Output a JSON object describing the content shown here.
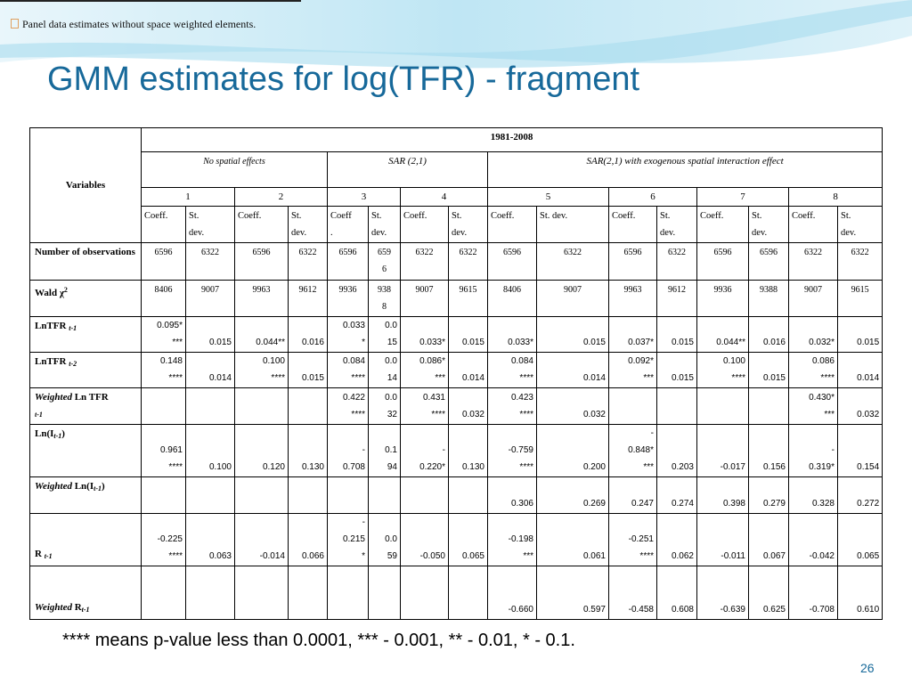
{
  "slide": {
    "note": "Panel data estimates without space weighted elements.",
    "title": "GMM estimates for log(TFR) - fragment",
    "footnote": "**** means p-value less than 0.0001, *** - 0.001, ** - 0.01, * - 0.1.",
    "page_number": "26"
  },
  "table": {
    "variables_header": "Variables",
    "period": "1981-2008",
    "groups": [
      "No spatial effects",
      "SAR (2,1)",
      "SAR(2,1) with exogenous spatial interaction effect"
    ],
    "models": [
      "1",
      "2",
      "3",
      "4",
      "5",
      "6",
      "7",
      "8"
    ],
    "column_labels": [
      "Coeff.",
      "St.\ndev.",
      "Coeff.",
      "St.\ndev.",
      "Coeff\n.",
      "St.\ndev.",
      "Coeff.",
      "St.\ndev.",
      "Coeff.",
      "St. dev.",
      "Coeff.",
      "St.\ndev.",
      "Coeff.",
      "St.\ndev.",
      "Coeff.",
      "St.\ndev."
    ],
    "rows": [
      {
        "label": [
          {
            "text": "Number of observations",
            "style": "bold"
          }
        ],
        "cells": [
          "6596",
          "6322",
          "6596",
          "6322",
          "6596",
          "659\n6",
          "6322",
          "6322",
          "6596",
          "6322",
          "6596",
          "6322",
          "6596",
          "6596",
          "6322",
          "6322"
        ]
      },
      {
        "label": [
          {
            "text": "Wald χ",
            "style": "bold"
          },
          {
            "text": "2",
            "style": "sup"
          }
        ],
        "cells": [
          "8406",
          "9007",
          "9963",
          "9612",
          "9936",
          "938\n8",
          "9007",
          "9615",
          "8406",
          "9007",
          "9963",
          "9612",
          "9936",
          "9388",
          "9007",
          "9615"
        ]
      },
      {
        "label": [
          {
            "text": "LnTFR ",
            "style": "bold"
          },
          {
            "text": "t-1",
            "style": "sub"
          }
        ],
        "cells": [
          "0.095*\n***",
          "0.015",
          "0.044**",
          "0.016",
          "0.033\n*",
          "0.0\n15",
          "0.033*",
          "0.015",
          "0.033*",
          "0.015",
          "0.037*",
          "0.015",
          "0.044**",
          "0.016",
          "0.032*",
          "0.015"
        ]
      },
      {
        "label": [
          {
            "text": "LnTFR ",
            "style": "bold"
          },
          {
            "text": "t-2",
            "style": "sub"
          }
        ],
        "cells": [
          "0.148\n****",
          "0.014",
          "0.100\n****",
          "0.015",
          "0.084\n****",
          "0.0\n14",
          "0.086*\n***",
          "0.014",
          "0.084\n****",
          "0.014",
          "0.092*\n***",
          "0.015",
          "0.100\n****",
          "0.015",
          "0.086\n****",
          "0.014"
        ]
      },
      {
        "label": [
          {
            "text": "Weighted",
            "style": "bold-italic"
          },
          {
            "text": " Ln TFR",
            "style": "bold"
          },
          {
            "text": "t-1",
            "style": "sub"
          }
        ],
        "cells": [
          null,
          null,
          null,
          null,
          "0.422\n****",
          "0.0\n32",
          "0.431\n****",
          "0.032",
          "0.423\n****",
          "0.032",
          null,
          null,
          null,
          null,
          "0.430*\n***",
          "0.032"
        ]
      },
      {
        "label": [
          {
            "text": "Ln(I",
            "style": "bold"
          },
          {
            "text": "t-1",
            "style": "sub"
          },
          {
            "text": ")",
            "style": "bold"
          }
        ],
        "cells": [
          "0.961\n****",
          "0.100",
          "0.120",
          "0.130",
          "-\n0.708",
          "0.1\n94",
          "-\n0.220*",
          "0.130",
          "-0.759\n****",
          "0.200",
          "-\n0.848*\n***",
          "0.203",
          "-0.017",
          "0.156",
          "-\n0.319*",
          "0.154"
        ]
      },
      {
        "label": [
          {
            "text": "Weighted",
            "style": "bold-italic"
          },
          {
            "text": " Ln(I",
            "style": "bold"
          },
          {
            "text": "t-1",
            "style": "sub"
          },
          {
            "text": ")",
            "style": "bold"
          }
        ],
        "cells": [
          null,
          null,
          null,
          null,
          null,
          null,
          null,
          null,
          "0.306",
          "0.269",
          "0.247",
          "0.274",
          "0.398",
          "0.279",
          "0.328",
          "0.272"
        ]
      },
      {
        "label": [
          {
            "text": "R ",
            "style": "bold"
          },
          {
            "text": "t-1",
            "style": "sub"
          }
        ],
        "cells": [
          "-0.225\n****",
          "0.063",
          "-0.014",
          "0.066",
          "-\n0.215\n*",
          "0.0\n59",
          "-0.050",
          "0.065",
          "-0.198\n***",
          "0.061",
          "-0.251\n****",
          "0.062",
          "-0.011",
          "0.067",
          "-0.042",
          "0.065"
        ]
      },
      {
        "label": [
          {
            "text": "Weighted",
            "style": "bold-italic"
          },
          {
            "text": " R",
            "style": "bold"
          },
          {
            "text": "t-1",
            "style": "sub"
          }
        ],
        "cells": [
          null,
          null,
          null,
          null,
          null,
          null,
          null,
          null,
          "-0.660",
          "0.597",
          "-0.458",
          "0.608",
          "-0.639",
          "0.625",
          "-0.708",
          "0.610"
        ]
      }
    ]
  }
}
